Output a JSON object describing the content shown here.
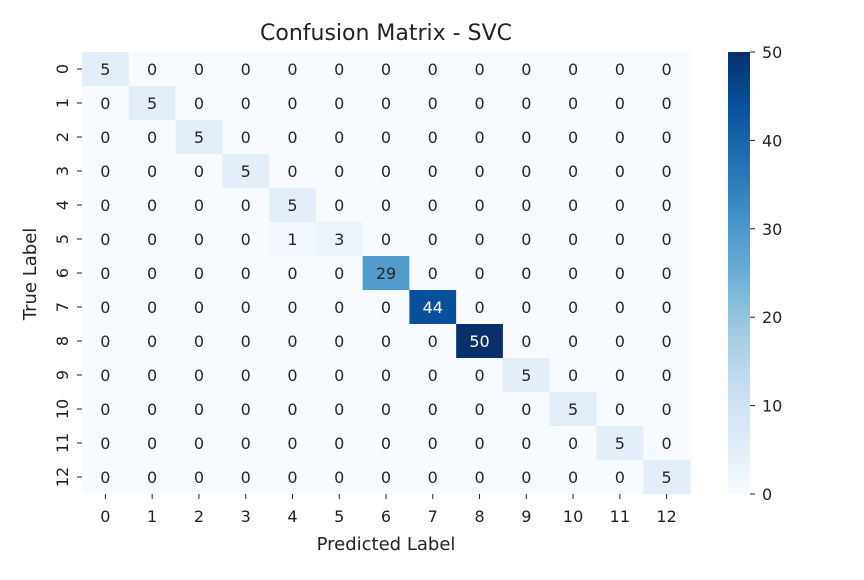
{
  "chart_data": {
    "type": "heatmap",
    "title": "Confusion Matrix - SVC",
    "xlabel": "Predicted Label",
    "ylabel": "True Label",
    "x_categories": [
      "0",
      "1",
      "2",
      "3",
      "4",
      "5",
      "6",
      "7",
      "8",
      "9",
      "10",
      "11",
      "12"
    ],
    "y_categories": [
      "0",
      "1",
      "2",
      "3",
      "4",
      "5",
      "6",
      "7",
      "8",
      "9",
      "10",
      "11",
      "12"
    ],
    "values": [
      [
        5,
        0,
        0,
        0,
        0,
        0,
        0,
        0,
        0,
        0,
        0,
        0,
        0
      ],
      [
        0,
        5,
        0,
        0,
        0,
        0,
        0,
        0,
        0,
        0,
        0,
        0,
        0
      ],
      [
        0,
        0,
        5,
        0,
        0,
        0,
        0,
        0,
        0,
        0,
        0,
        0,
        0
      ],
      [
        0,
        0,
        0,
        5,
        0,
        0,
        0,
        0,
        0,
        0,
        0,
        0,
        0
      ],
      [
        0,
        0,
        0,
        0,
        5,
        0,
        0,
        0,
        0,
        0,
        0,
        0,
        0
      ],
      [
        0,
        0,
        0,
        0,
        1,
        3,
        0,
        0,
        0,
        0,
        0,
        0,
        0
      ],
      [
        0,
        0,
        0,
        0,
        0,
        0,
        29,
        0,
        0,
        0,
        0,
        0,
        0
      ],
      [
        0,
        0,
        0,
        0,
        0,
        0,
        0,
        44,
        0,
        0,
        0,
        0,
        0
      ],
      [
        0,
        0,
        0,
        0,
        0,
        0,
        0,
        0,
        50,
        0,
        0,
        0,
        0
      ],
      [
        0,
        0,
        0,
        0,
        0,
        0,
        0,
        0,
        0,
        5,
        0,
        0,
        0
      ],
      [
        0,
        0,
        0,
        0,
        0,
        0,
        0,
        0,
        0,
        0,
        5,
        0,
        0
      ],
      [
        0,
        0,
        0,
        0,
        0,
        0,
        0,
        0,
        0,
        0,
        0,
        5,
        0
      ],
      [
        0,
        0,
        0,
        0,
        0,
        0,
        0,
        0,
        0,
        0,
        0,
        0,
        5
      ]
    ],
    "colormap": "Blues",
    "value_range": [
      0,
      50
    ],
    "colorbar_ticks": [
      0,
      10,
      20,
      30,
      40,
      50
    ],
    "annotations": true
  }
}
